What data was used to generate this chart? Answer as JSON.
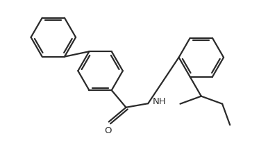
{
  "bg_color": "#ffffff",
  "line_color": "#2a2a2a",
  "line_width": 1.6,
  "dbo": 0.022,
  "font_size": 9.5,
  "figsize": [
    3.86,
    2.22
  ],
  "dpi": 100,
  "r": 0.2
}
